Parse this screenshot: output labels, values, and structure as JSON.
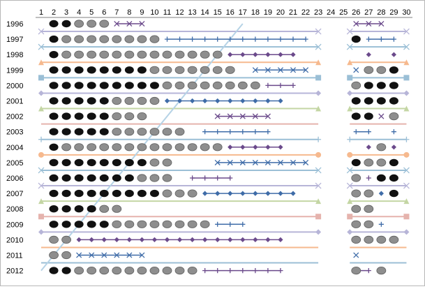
{
  "chart_data": {
    "type": "scatter",
    "x_ticks": [
      1,
      2,
      3,
      4,
      5,
      6,
      7,
      8,
      9,
      10,
      11,
      12,
      13,
      14,
      15,
      16,
      17,
      18,
      19,
      20,
      21,
      22,
      23,
      24,
      25,
      26,
      27,
      28,
      29,
      30
    ],
    "years": [
      "1996",
      "1997",
      "1998",
      "1999",
      "2000",
      "2001",
      "2002",
      "2003",
      "2004",
      "2005",
      "2006",
      "2007",
      "2008",
      "2009",
      "2010",
      "2011",
      "2012"
    ],
    "xlim": [
      1,
      30
    ],
    "grid": false,
    "legend": "none",
    "colors": {
      "black": "#111111",
      "gray": "#8e8e8e",
      "blue": "#3f6ca8",
      "purple": "#6b4a8b",
      "lightblue": "#9bbfd6",
      "lavender": "#b7b5d8",
      "orange": "#f6b98e",
      "green": "#c4d6a4",
      "pink": "#e5b3ad",
      "diag": "#b6d3e6"
    },
    "dots": [
      {
        "year": "1996",
        "black": [
          2,
          3
        ],
        "gray": [
          4,
          5,
          6
        ]
      },
      {
        "year": "1997",
        "black": [
          2,
          26
        ],
        "gray": [
          3,
          4,
          5,
          6,
          7,
          8,
          9,
          10
        ]
      },
      {
        "year": "1998",
        "black": [
          2
        ],
        "gray": [
          3,
          4,
          5,
          6,
          7,
          8,
          9,
          10,
          11,
          12,
          13,
          14,
          15
        ]
      },
      {
        "year": "1999",
        "black": [
          2,
          3,
          4,
          5,
          6,
          7,
          8,
          9,
          29
        ],
        "gray": [
          10,
          11,
          12,
          13,
          14,
          15,
          16,
          27,
          28
        ]
      },
      {
        "year": "2000",
        "black": [
          2,
          3,
          4,
          5,
          6,
          7,
          8,
          9,
          10,
          27,
          28,
          29
        ],
        "gray": [
          11,
          12,
          13,
          14,
          15,
          16,
          17,
          18,
          26
        ]
      },
      {
        "year": "2001",
        "black": [
          2,
          3,
          4,
          5,
          6,
          26,
          27,
          28,
          29
        ],
        "gray": [
          7,
          8,
          9,
          10
        ]
      },
      {
        "year": "2002",
        "black": [
          2,
          3,
          4,
          5,
          6,
          26,
          27
        ],
        "gray": [
          7,
          8,
          9,
          29
        ]
      },
      {
        "year": "2003",
        "black": [
          2,
          3,
          4,
          5,
          6
        ],
        "gray": [
          7,
          8,
          9,
          10,
          11,
          12
        ]
      },
      {
        "year": "2004",
        "black": [
          2
        ],
        "gray": [
          3,
          4,
          5,
          6,
          7,
          8,
          9,
          10,
          11,
          12,
          13,
          14,
          15,
          28
        ]
      },
      {
        "year": "2005",
        "black": [
          2,
          3,
          4,
          5,
          6,
          7,
          8,
          9,
          26,
          29
        ],
        "gray": [
          10,
          11,
          27,
          28
        ]
      },
      {
        "year": "2006",
        "black": [
          2,
          3,
          4,
          5,
          6,
          7,
          8,
          28,
          29
        ],
        "gray": [
          9,
          10,
          11,
          26
        ]
      },
      {
        "year": "2007",
        "black": [
          2,
          3,
          4,
          5,
          6,
          7,
          8,
          9,
          10,
          29
        ],
        "gray": [
          11,
          12,
          13,
          26,
          27
        ]
      },
      {
        "year": "2008",
        "black": [
          2,
          3,
          4,
          5
        ],
        "gray": [
          6,
          7,
          26,
          27
        ]
      },
      {
        "year": "2009",
        "black": [
          2,
          3,
          4,
          5,
          6
        ],
        "gray": [
          7,
          8,
          9,
          10,
          11,
          12,
          13,
          14,
          26,
          27
        ]
      },
      {
        "year": "2010",
        "black": [],
        "gray": [
          2,
          3,
          26,
          27,
          28,
          29
        ]
      },
      {
        "year": "2011",
        "black": [],
        "gray": [
          2,
          3
        ]
      },
      {
        "year": "2012",
        "black": [
          2,
          3
        ],
        "gray": [
          4,
          5,
          6,
          7,
          8,
          9,
          10,
          11,
          12,
          13,
          26,
          28
        ]
      }
    ],
    "markers": [
      {
        "year": "1996",
        "shape": "x",
        "color": "purple",
        "points": [
          7,
          8,
          9,
          26,
          27,
          28
        ]
      },
      {
        "year": "1997",
        "shape": "plus",
        "color": "blue",
        "points": [
          11,
          12,
          13,
          14,
          15,
          16,
          17,
          18,
          19,
          20,
          21,
          22,
          27,
          28,
          29
        ]
      },
      {
        "year": "1998",
        "shape": "diamond",
        "color": "purple",
        "points": [
          16,
          17,
          18,
          19,
          20,
          21,
          27,
          29
        ]
      },
      {
        "year": "1999",
        "shape": "x",
        "color": "blue",
        "points": [
          18,
          19,
          20,
          21,
          22,
          26
        ]
      },
      {
        "year": "2000",
        "shape": "plus",
        "color": "purple",
        "points": [
          19,
          20,
          21
        ]
      },
      {
        "year": "2001",
        "shape": "diamond",
        "color": "blue",
        "points": [
          11,
          12,
          13,
          14,
          15,
          16,
          17,
          18,
          19,
          20
        ]
      },
      {
        "year": "2002",
        "shape": "x",
        "color": "purple",
        "points": [
          15,
          16,
          17,
          18,
          19,
          28
        ]
      },
      {
        "year": "2003",
        "shape": "plus",
        "color": "blue",
        "points": [
          14,
          15,
          16,
          17,
          18,
          19,
          26,
          27,
          29
        ]
      },
      {
        "year": "2004",
        "shape": "diamond",
        "color": "purple",
        "points": [
          16,
          17,
          18,
          19,
          20,
          27,
          29
        ]
      },
      {
        "year": "2005",
        "shape": "x",
        "color": "blue",
        "points": [
          15,
          16,
          17,
          18,
          19,
          20,
          21,
          22
        ]
      },
      {
        "year": "2006",
        "shape": "plus",
        "color": "purple",
        "points": [
          13,
          14,
          15,
          16,
          27
        ]
      },
      {
        "year": "2007",
        "shape": "diamond",
        "color": "blue",
        "points": [
          14,
          15,
          16,
          17,
          18,
          19,
          20,
          21,
          28
        ]
      },
      {
        "year": "2009",
        "shape": "plus",
        "color": "blue",
        "points": [
          15,
          16,
          17,
          28
        ]
      },
      {
        "year": "2010",
        "shape": "diamond",
        "color": "purple",
        "points": [
          4,
          5,
          6,
          7,
          8,
          9,
          10,
          11,
          12,
          13,
          14,
          15,
          16,
          17,
          18,
          19,
          20
        ]
      },
      {
        "year": "2011",
        "shape": "x",
        "color": "blue",
        "points": [
          4,
          5,
          6,
          7,
          8,
          9,
          26
        ]
      },
      {
        "year": "2012",
        "shape": "plus",
        "color": "purple",
        "points": [
          14,
          15,
          16,
          17,
          18,
          19,
          20,
          26,
          27
        ]
      }
    ],
    "bands": [
      {
        "after": "1996",
        "shape": "x",
        "color": "lavender"
      },
      {
        "after": "1997",
        "shape": "x",
        "color": "lightblue"
      },
      {
        "after": "1998",
        "shape": "triangle",
        "color": "orange"
      },
      {
        "after": "1999",
        "shape": "square",
        "color": "lightblue"
      },
      {
        "after": "2000",
        "shape": "diamond",
        "color": "lavender"
      },
      {
        "after": "2001",
        "shape": "triangle",
        "color": "green"
      },
      {
        "after": "2002",
        "shape": "line",
        "color": "pink"
      },
      {
        "after": "2003",
        "shape": "plus",
        "color": "lightblue"
      },
      {
        "after": "2004",
        "shape": "circle",
        "color": "orange"
      },
      {
        "after": "2005",
        "shape": "x",
        "color": "lightblue"
      },
      {
        "after": "2006",
        "shape": "x",
        "color": "lavender"
      },
      {
        "after": "2007",
        "shape": "triangle",
        "color": "green"
      },
      {
        "after": "2008",
        "shape": "square",
        "color": "pink"
      },
      {
        "after": "2009",
        "shape": "diamond",
        "color": "lavender"
      },
      {
        "after": "2010",
        "shape": "line",
        "color": "orange"
      },
      {
        "after": "2011",
        "shape": "line",
        "color": "lightblue"
      }
    ],
    "band_ranges": [
      [
        1,
        23
      ],
      [
        25.5,
        30
      ]
    ],
    "diagonal": {
      "from": [
        1,
        "2012"
      ],
      "to": [
        17,
        "1996"
      ]
    }
  }
}
